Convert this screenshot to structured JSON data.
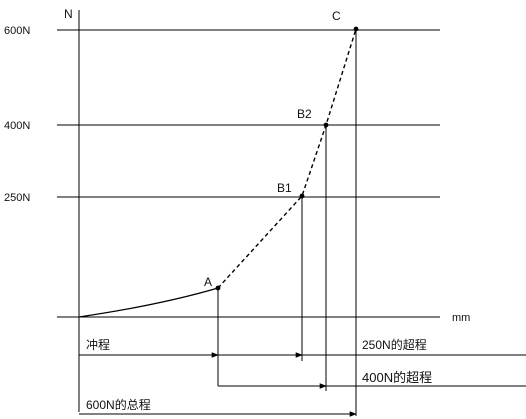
{
  "axes": {
    "y_unit": "N",
    "x_unit": "mm"
  },
  "levels": [
    {
      "key": "600",
      "label": "600N"
    },
    {
      "key": "400",
      "label": "400N"
    },
    {
      "key": "250",
      "label": "250N"
    }
  ],
  "points": [
    {
      "key": "A",
      "label": "A"
    },
    {
      "key": "B1",
      "label": "B1"
    },
    {
      "key": "B2",
      "label": "B2"
    },
    {
      "key": "C",
      "label": "C"
    }
  ],
  "strokes": {
    "stroke": "冲程",
    "over_250": "250N的超程",
    "over_400": "400N的超程",
    "total_600": "600N的总程"
  }
}
